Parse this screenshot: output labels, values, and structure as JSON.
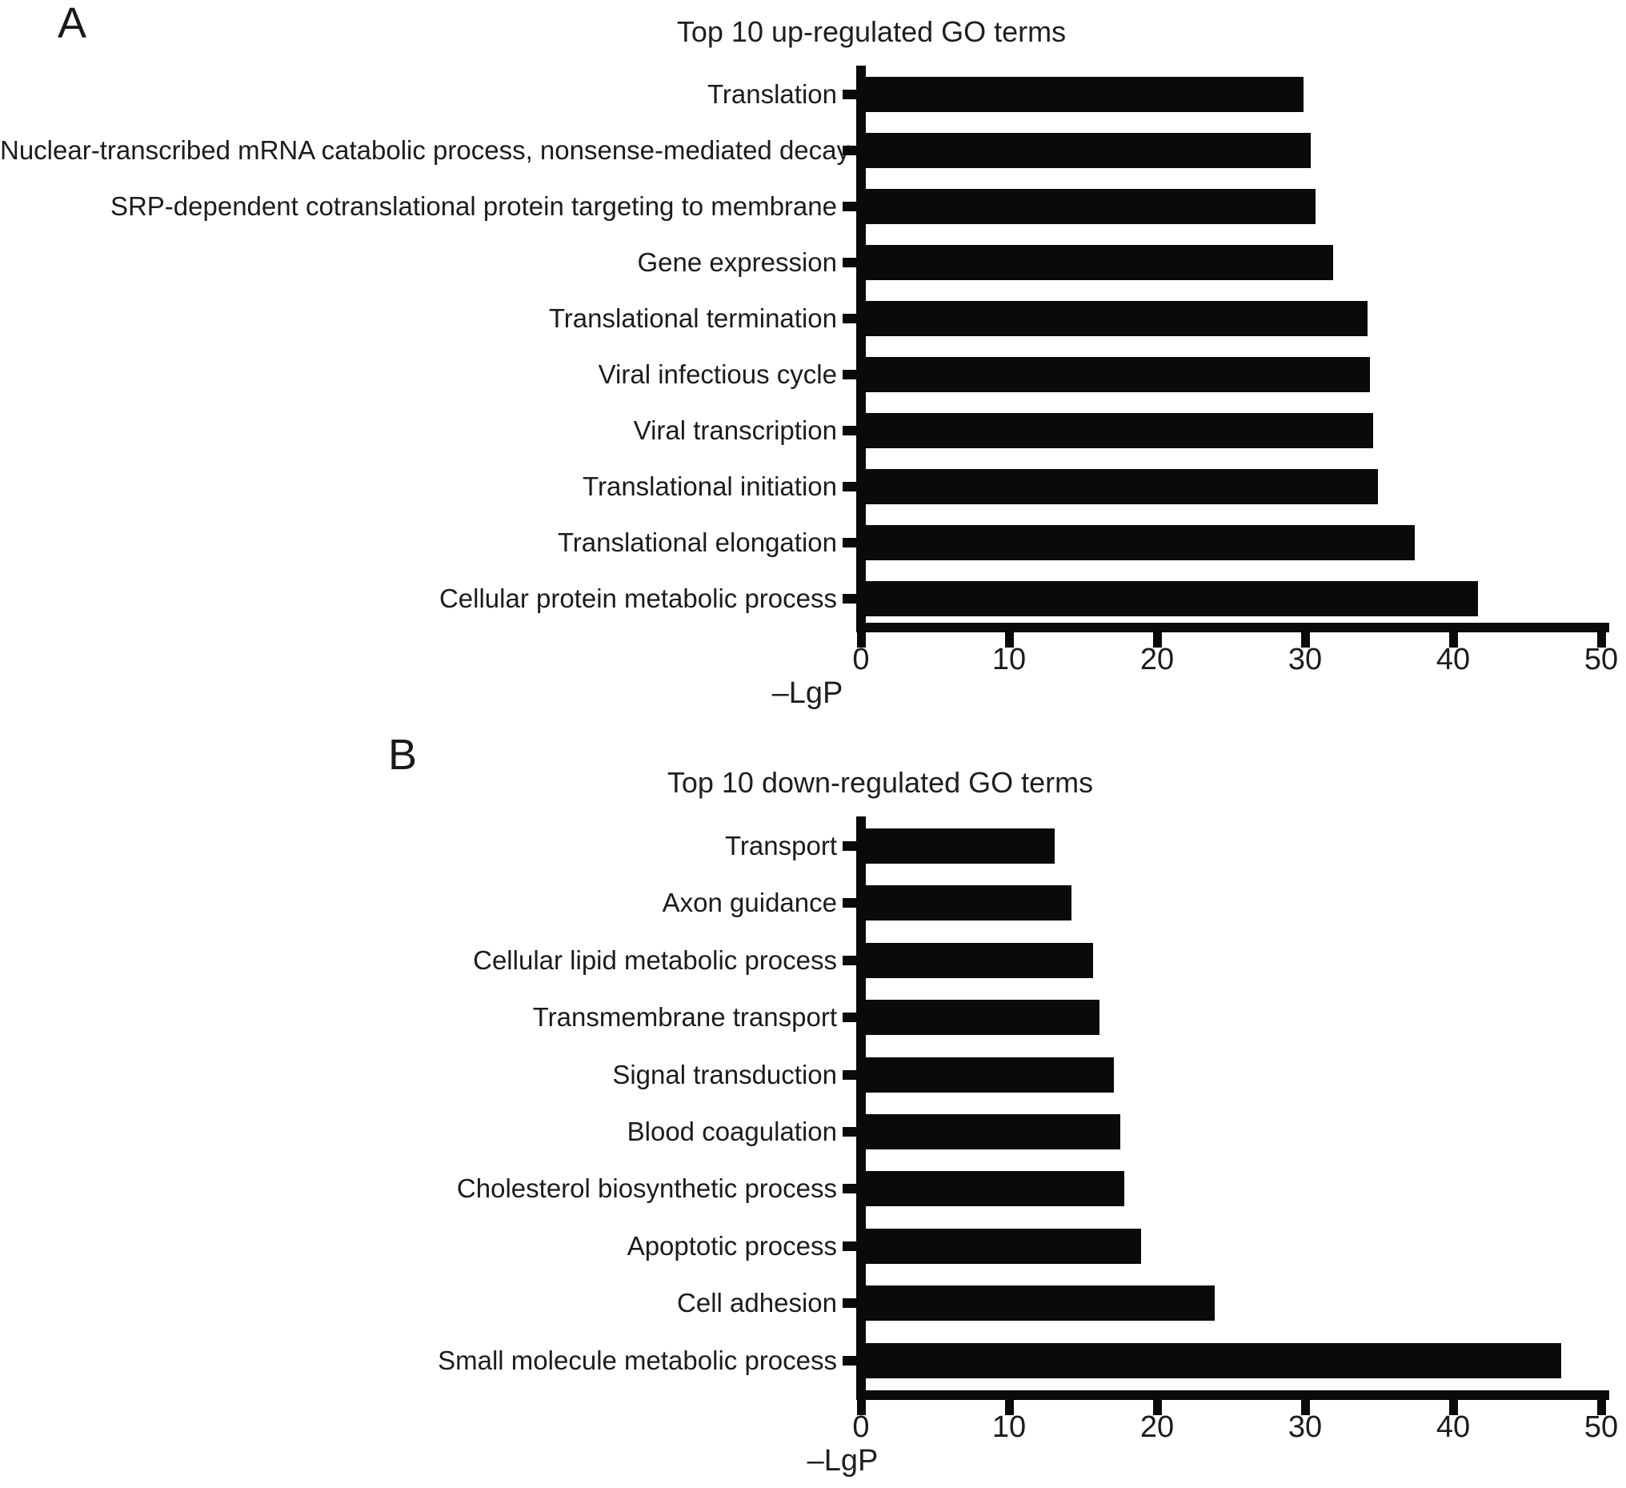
{
  "figure": {
    "background": "#ffffff",
    "bar_color": "#0a0a0a",
    "axis_color": "#0a0a0a",
    "text_color": "#1c1c1c"
  },
  "chart_data": [
    {
      "type": "bar",
      "orientation": "horizontal",
      "panel": "A",
      "title": "Top 10 up-regulated GO terms",
      "xlabel": "–LgP",
      "xlim": [
        0,
        50
      ],
      "xticks": [
        0,
        10,
        20,
        30,
        40,
        50
      ],
      "grid": false,
      "legend": false,
      "bar_color": "#0a0a0a",
      "categories": [
        "Translation",
        "Nuclear-transcribed mRNA catabolic process, nonsense-mediated decay",
        "SRP-dependent cotranslational protein targeting to membrane",
        "Gene expression",
        "Translational termination",
        "Viral infectious cycle",
        "Viral transcription",
        "Translational initiation",
        "Translational elongation",
        "Cellular protein metabolic process"
      ],
      "values": [
        29.9,
        30.4,
        30.7,
        31.9,
        34.2,
        34.4,
        34.6,
        34.9,
        37.4,
        41.7
      ]
    },
    {
      "type": "bar",
      "orientation": "horizontal",
      "panel": "B",
      "title": "Top 10 down-regulated GO terms",
      "xlabel": "–LgP",
      "xlim": [
        0,
        50
      ],
      "xticks": [
        0,
        10,
        20,
        30,
        40,
        50
      ],
      "grid": false,
      "legend": false,
      "bar_color": "#0a0a0a",
      "categories": [
        "Transport",
        "Axon guidance",
        "Cellular lipid metabolic process",
        "Transmembrane transport",
        "Signal transduction",
        "Blood coagulation",
        "Cholesterol biosynthetic process",
        "Apoptotic process",
        "Cell adhesion",
        "Small molecule metabolic process"
      ],
      "values": [
        13.1,
        14.2,
        15.7,
        16.1,
        17.1,
        17.5,
        17.8,
        18.9,
        23.9,
        47.3
      ]
    }
  ]
}
